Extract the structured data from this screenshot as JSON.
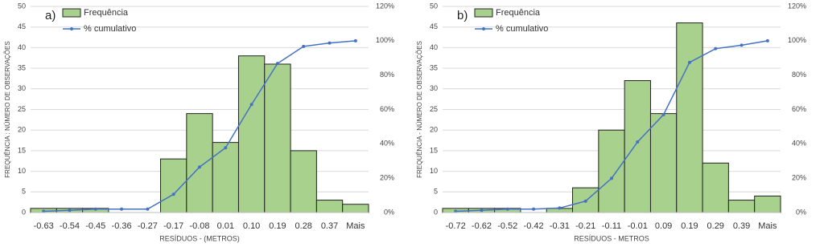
{
  "chart_data": [
    {
      "type": "bar",
      "panel_label": "a)",
      "ylabel": "FREQUÊNCIA : NÚMERO DE OBSERVAÇÕES",
      "xlabel": "RESÍDUOS - (METROS)",
      "categories": [
        "-0.63",
        "-0.54",
        "-0.45",
        "-0.36",
        "-0.27",
        "-0.17",
        "-0.08",
        "0.01",
        "0.10",
        "0.19",
        "0.28",
        "0.37",
        "Mais"
      ],
      "series": [
        {
          "name": "Frequência",
          "color": "#a9d18e",
          "values": [
            1,
            1,
            1,
            0,
            0,
            13,
            24,
            17,
            38,
            36,
            15,
            3,
            2
          ]
        },
        {
          "name": "% cumulativo",
          "color": "#4472c4",
          "axis": "y2",
          "type": "line",
          "values": [
            0.7,
            1.3,
            2,
            2,
            2,
            10.6,
            26.5,
            37.7,
            62.9,
            86.8,
            96.7,
            98.7,
            100
          ]
        }
      ],
      "ylim": [
        0,
        50
      ],
      "yticks": [
        0,
        5,
        10,
        15,
        20,
        25,
        30,
        35,
        40,
        45,
        50
      ],
      "y2lim": [
        0,
        120
      ],
      "y2ticks": [
        {
          "value": 0,
          "label": "0%"
        },
        {
          "value": 20,
          "label": "20%"
        },
        {
          "value": 40,
          "label": "40%"
        },
        {
          "value": 60,
          "label": "60%"
        },
        {
          "value": 80,
          "label": "80%"
        },
        {
          "value": 100,
          "label": "100%"
        },
        {
          "value": 120,
          "label": "120%"
        }
      ],
      "grid": true,
      "legend": "upper left"
    },
    {
      "type": "bar",
      "panel_label": "b)",
      "ylabel": "FREQUÊNCIA - NÚMERO DE OBSERVAÇÕES",
      "xlabel": "RESÍDUOS - METROS",
      "categories": [
        "-0.72",
        "-0.62",
        "-0.52",
        "-0.42",
        "-0.31",
        "-0.21",
        "-0.11",
        "-0.01",
        "0.09",
        "0.19",
        "0.29",
        "0.39",
        "Mais"
      ],
      "series": [
        {
          "name": "Frequência",
          "color": "#a9d18e",
          "values": [
            1,
            1,
            1,
            0,
            1,
            6,
            20,
            32,
            24,
            46,
            12,
            3,
            4
          ]
        },
        {
          "name": "% cumulativo",
          "color": "#4472c4",
          "axis": "y2",
          "type": "line",
          "values": [
            0.7,
            1.3,
            2,
            2,
            2.6,
            6.6,
            19.9,
            41.1,
            57,
            87.4,
            95.4,
            97.4,
            100
          ]
        }
      ],
      "ylim": [
        0,
        50
      ],
      "yticks": [
        0,
        5,
        10,
        15,
        20,
        25,
        30,
        35,
        40,
        45,
        50
      ],
      "y2lim": [
        0,
        120
      ],
      "y2ticks": [
        {
          "value": 0,
          "label": "0%"
        },
        {
          "value": 20,
          "label": "20%"
        },
        {
          "value": 40,
          "label": "40%"
        },
        {
          "value": 60,
          "label": "60%"
        },
        {
          "value": 80,
          "label": "80%"
        },
        {
          "value": 100,
          "label": "100%"
        },
        {
          "value": 120,
          "label": "120%"
        }
      ],
      "grid": true,
      "legend": "upper left"
    }
  ]
}
